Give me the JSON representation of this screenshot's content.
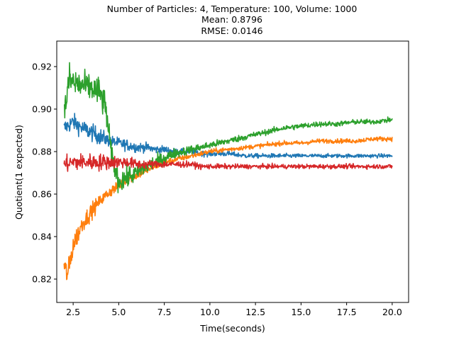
{
  "chart_data": {
    "type": "line",
    "title_lines": [
      "Number of Particles: 4, Temperature: 100, Volume: 1000",
      "Mean: 0.8796",
      "RMSE: 0.0146"
    ],
    "xlabel": "Time(seconds)",
    "ylabel": "Quotient(1 expected)",
    "xlim": [
      1.6,
      20.9
    ],
    "ylim": [
      0.809,
      0.932
    ],
    "xticks": [
      2.5,
      5.0,
      7.5,
      10.0,
      12.5,
      15.0,
      17.5,
      20.0
    ],
    "xtick_labels": [
      "2.5",
      "5.0",
      "7.5",
      "10.0",
      "12.5",
      "15.0",
      "17.5",
      "20.0"
    ],
    "yticks": [
      0.82,
      0.84,
      0.86,
      0.88,
      0.9,
      0.92
    ],
    "ytick_labels": [
      "0.82",
      "0.84",
      "0.86",
      "0.88",
      "0.90",
      "0.92"
    ],
    "grid": false,
    "legend": "none",
    "series": [
      {
        "color": "#1f77b4",
        "x": [
          2.0,
          2.5,
          3.0,
          3.5,
          4.0,
          4.5,
          5.0,
          5.5,
          6.0,
          6.5,
          7.0,
          7.5,
          8.0,
          8.5,
          9.0,
          9.5,
          10.0,
          11.0,
          12.0,
          13.0,
          14.0,
          15.0,
          16.0,
          17.0,
          18.0,
          19.0,
          20.0
        ],
        "y": [
          0.891,
          0.894,
          0.891,
          0.889,
          0.887,
          0.885,
          0.884,
          0.883,
          0.882,
          0.882,
          0.881,
          0.881,
          0.88,
          0.88,
          0.88,
          0.879,
          0.879,
          0.879,
          0.878,
          0.878,
          0.878,
          0.878,
          0.878,
          0.878,
          0.878,
          0.878,
          0.878
        ],
        "noise": [
          0.003,
          0.003,
          0.003,
          0.003,
          0.003,
          0.002,
          0.002,
          0.002,
          0.0018,
          0.0016,
          0.0014,
          0.0013,
          0.0012,
          0.0011,
          0.001,
          0.001,
          0.001,
          0.0009,
          0.0008,
          0.0008,
          0.0008,
          0.0007,
          0.0007,
          0.0007,
          0.0007,
          0.0007,
          0.0007
        ]
      },
      {
        "color": "#ff7f0e",
        "x": [
          2.0,
          2.2,
          2.5,
          3.0,
          3.5,
          4.0,
          4.5,
          5.0,
          5.5,
          6.0,
          6.5,
          7.0,
          7.5,
          8.0,
          8.5,
          9.0,
          9.5,
          10.0,
          11.0,
          12.0,
          13.0,
          14.0,
          15.0,
          16.0,
          17.0,
          18.0,
          19.0,
          20.0
        ],
        "y": [
          0.826,
          0.822,
          0.836,
          0.846,
          0.852,
          0.857,
          0.861,
          0.864,
          0.867,
          0.869,
          0.871,
          0.873,
          0.875,
          0.876,
          0.877,
          0.878,
          0.879,
          0.88,
          0.881,
          0.882,
          0.883,
          0.884,
          0.884,
          0.885,
          0.885,
          0.885,
          0.886,
          0.886
        ],
        "noise": [
          0.004,
          0.004,
          0.004,
          0.003,
          0.003,
          0.002,
          0.002,
          0.002,
          0.0018,
          0.0016,
          0.0014,
          0.0012,
          0.0011,
          0.001,
          0.001,
          0.001,
          0.0009,
          0.0009,
          0.0009,
          0.0008,
          0.0008,
          0.0008,
          0.0008,
          0.0008,
          0.0008,
          0.0008,
          0.0008,
          0.0008
        ]
      },
      {
        "color": "#2ca02c",
        "x": [
          2.0,
          2.3,
          2.6,
          3.0,
          3.5,
          4.0,
          4.3,
          4.6,
          5.0,
          5.5,
          6.0,
          6.5,
          7.0,
          7.5,
          8.0,
          8.5,
          9.0,
          9.5,
          10.0,
          11.0,
          12.0,
          13.0,
          14.0,
          15.0,
          16.0,
          17.0,
          18.0,
          19.0,
          20.0
        ],
        "y": [
          0.898,
          0.914,
          0.912,
          0.911,
          0.91,
          0.907,
          0.9,
          0.878,
          0.866,
          0.868,
          0.87,
          0.873,
          0.875,
          0.877,
          0.879,
          0.88,
          0.881,
          0.882,
          0.883,
          0.885,
          0.887,
          0.889,
          0.891,
          0.892,
          0.893,
          0.893,
          0.894,
          0.894,
          0.895
        ],
        "noise": [
          0.006,
          0.006,
          0.006,
          0.005,
          0.005,
          0.006,
          0.005,
          0.004,
          0.004,
          0.004,
          0.003,
          0.003,
          0.0025,
          0.002,
          0.0018,
          0.0016,
          0.0015,
          0.0014,
          0.0013,
          0.0012,
          0.0011,
          0.001,
          0.001,
          0.001,
          0.001,
          0.0009,
          0.0009,
          0.0009,
          0.0009
        ]
      },
      {
        "color": "#d62728",
        "x": [
          2.0,
          2.5,
          3.0,
          3.5,
          4.0,
          4.5,
          5.0,
          5.5,
          6.0,
          6.5,
          7.0,
          7.5,
          8.0,
          8.5,
          9.0,
          9.5,
          10.0,
          11.0,
          12.0,
          13.0,
          14.0,
          15.0,
          16.0,
          17.0,
          18.0,
          19.0,
          20.0
        ],
        "y": [
          0.874,
          0.875,
          0.875,
          0.875,
          0.875,
          0.875,
          0.875,
          0.875,
          0.874,
          0.874,
          0.874,
          0.874,
          0.874,
          0.874,
          0.874,
          0.873,
          0.873,
          0.873,
          0.873,
          0.873,
          0.873,
          0.873,
          0.873,
          0.873,
          0.873,
          0.873,
          0.873
        ],
        "noise": [
          0.003,
          0.003,
          0.003,
          0.003,
          0.003,
          0.0025,
          0.0022,
          0.002,
          0.0018,
          0.0016,
          0.0014,
          0.0013,
          0.0012,
          0.0011,
          0.001,
          0.001,
          0.0009,
          0.0009,
          0.0008,
          0.0008,
          0.0008,
          0.0008,
          0.0008,
          0.0008,
          0.0008,
          0.0008,
          0.0008
        ]
      }
    ]
  }
}
